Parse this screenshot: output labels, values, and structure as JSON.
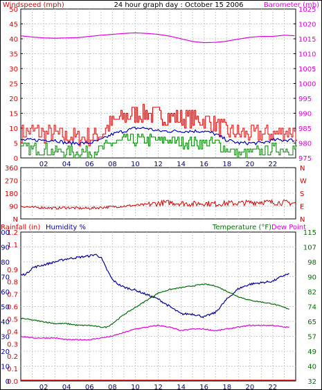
{
  "header": {
    "title": "24 hour graph day : October 15 2006",
    "left_label": "Windspeed (mph)",
    "right_label": "Barometer (mb)"
  },
  "colors": {
    "wind": "#e00000",
    "avg_wind": "#0000c0",
    "gust_low": "#008000",
    "barometer": "#e000e0",
    "direction": "#d00000",
    "rain": "#e00000",
    "humidity": "#0000a0",
    "temperature": "#007000",
    "dewpoint": "#e000e0",
    "grid": "#c8c8c8",
    "frame": "#000000"
  },
  "chart_data": [
    {
      "type": "line",
      "name": "wind-and-barometer",
      "title": "24 hour graph day : October 15 2006",
      "xticks": [
        "02",
        "04",
        "06",
        "08",
        "10",
        "12",
        "14",
        "16",
        "18",
        "20",
        "22"
      ],
      "xlim": [
        0,
        24
      ],
      "left_axis": {
        "label": "Windspeed (mph)",
        "ticks": [
          "0",
          "5",
          "10",
          "15",
          "20",
          "25",
          "30",
          "35",
          "40",
          "45",
          "50"
        ],
        "lim": [
          0,
          50
        ]
      },
      "right_axis": {
        "label": "Barometer (mb)",
        "ticks": [
          "975",
          "980",
          "985",
          "990",
          "995",
          "1000",
          "1005",
          "1010",
          "1015",
          "1020",
          "1025"
        ],
        "lim": [
          975,
          1025
        ]
      },
      "grid": true,
      "series": [
        {
          "name": "Windspeed (mph)",
          "axis": "left",
          "x": [
            0,
            1,
            2,
            3,
            4,
            5,
            6,
            7,
            8,
            9,
            10,
            11,
            12,
            13,
            14,
            15,
            16,
            17,
            18,
            19,
            20,
            21,
            22,
            23,
            24
          ],
          "y": [
            8,
            9,
            8,
            8,
            7,
            7,
            7,
            8,
            12,
            14,
            15,
            15,
            14,
            14,
            13,
            13,
            13,
            11,
            9,
            8,
            8,
            8,
            8,
            9,
            9
          ]
        },
        {
          "axis": "left",
          "x": [
            0,
            1,
            2,
            3,
            4,
            5,
            6,
            7,
            8,
            9,
            10,
            11,
            12,
            13,
            14,
            15,
            16,
            17,
            18,
            19,
            20,
            21,
            22,
            23,
            24
          ],
          "y": [
            6,
            6,
            6,
            6,
            5,
            5,
            5,
            6,
            8,
            9,
            10,
            10,
            9,
            9,
            9,
            9,
            9,
            8,
            6,
            5,
            5,
            5,
            6,
            6,
            6
          ]
        },
        {
          "axis": "left",
          "x": [
            0,
            1,
            2,
            3,
            4,
            5,
            6,
            7,
            8,
            9,
            10,
            11,
            12,
            13,
            14,
            15,
            16,
            17,
            18,
            19,
            20,
            21,
            22,
            23,
            24
          ],
          "y": [
            3,
            3,
            3,
            2,
            2,
            2,
            2,
            3,
            5,
            6,
            6,
            6,
            6,
            6,
            5,
            5,
            5,
            5,
            3,
            1,
            2,
            2,
            3,
            3,
            3
          ]
        },
        {
          "name": "Barometer (mb)",
          "axis": "right",
          "x": [
            0,
            1,
            2,
            3,
            4,
            5,
            6,
            7,
            8,
            9,
            10,
            11,
            12,
            13,
            14,
            15,
            16,
            17,
            18,
            19,
            20,
            21,
            22,
            23,
            24
          ],
          "y": [
            1016.0,
            1015.6,
            1015.3,
            1015.2,
            1015.3,
            1015.4,
            1015.8,
            1016.2,
            1016.5,
            1016.8,
            1017.0,
            1016.8,
            1016.5,
            1015.9,
            1015.0,
            1014.1,
            1013.7,
            1013.8,
            1014.2,
            1014.9,
            1015.5,
            1015.8,
            1015.8,
            1016.2,
            1016.0
          ]
        }
      ]
    },
    {
      "type": "line",
      "name": "wind-direction",
      "xlim": [
        0,
        24
      ],
      "left_axis": {
        "ticks": [
          "N",
          "270",
          "180",
          "90",
          "N"
        ],
        "lim": [
          0,
          360
        ]
      },
      "right_axis": {
        "ticks": [
          "N",
          "W",
          "S",
          "E",
          "N"
        ]
      },
      "left_ticks_top": "360",
      "grid": true,
      "series": [
        {
          "axis": "left",
          "x": [
            0,
            1,
            2,
            3,
            4,
            5,
            6,
            7,
            8,
            9,
            10,
            11,
            12,
            13,
            14,
            15,
            16,
            17,
            18,
            19,
            20,
            21,
            22,
            23,
            24
          ],
          "y": [
            90,
            80,
            80,
            75,
            80,
            75,
            75,
            80,
            85,
            90,
            95,
            100,
            110,
            115,
            110,
            105,
            110,
            105,
            110,
            110,
            115,
            120,
            115,
            115,
            110
          ]
        }
      ]
    },
    {
      "type": "line",
      "name": "rain-humidity-temperature",
      "xticks": [
        "02",
        "04",
        "06",
        "08",
        "10",
        "12",
        "14",
        "16",
        "18",
        "20",
        "22"
      ],
      "xlim": [
        0,
        24
      ],
      "rain_axis": {
        "label": "Rainfall (in)",
        "ticks": [
          "0.0",
          "0.1",
          "0.2",
          "0.3",
          "0.4",
          "0.5",
          "0.6",
          "0.7",
          "0.8",
          "0.9",
          "1.0",
          "1.1",
          "1.2"
        ],
        "lim": [
          0,
          1.2
        ]
      },
      "humidity_axis": {
        "label": "Humidity %",
        "ticks": [
          "0",
          "10",
          "20",
          "30",
          "40",
          "50",
          "60",
          "70",
          "80",
          "90",
          "100"
        ],
        "lim": [
          0,
          100
        ]
      },
      "temp_axis": {
        "label": "Temperature (°F)",
        "label2": "Dew Point",
        "ticks": [
          "32",
          "40",
          "49",
          "57",
          "65",
          "74",
          "82",
          "90",
          "98",
          "107",
          "115"
        ],
        "lim": [
          32,
          115
        ]
      },
      "grid": true,
      "series": [
        {
          "name": "Humidity %",
          "axis": "humidity",
          "x": [
            0,
            0.5,
            1,
            2,
            3,
            4,
            5,
            6,
            6.5,
            7,
            7.5,
            8,
            8.5,
            9,
            10,
            11,
            12,
            13,
            14,
            15,
            16,
            17,
            18,
            19,
            20,
            21,
            22,
            23,
            23.5
          ],
          "y": [
            71,
            72,
            76,
            78,
            80,
            82,
            83,
            84,
            85,
            83,
            75,
            68,
            65,
            63,
            61,
            58,
            55,
            50,
            45,
            45,
            43,
            46,
            55,
            62,
            65,
            66,
            67,
            71,
            72
          ]
        },
        {
          "name": "Temperature (°F)",
          "axis": "temp",
          "x": [
            0,
            1,
            2,
            3,
            4,
            5,
            6,
            7,
            7.5,
            8,
            9,
            10,
            11,
            12,
            13,
            14,
            15,
            16,
            17,
            18,
            19,
            20,
            21,
            22,
            23,
            23.5
          ],
          "y": [
            67,
            66,
            65,
            64,
            64,
            63,
            63,
            62,
            62,
            64,
            69,
            73,
            77,
            81,
            83,
            84,
            85,
            86,
            85,
            82,
            79,
            77,
            76,
            75,
            73,
            72
          ]
        },
        {
          "name": "Dew Point",
          "axis": "temp",
          "x": [
            0,
            1,
            2,
            3,
            4,
            5,
            6,
            7,
            8,
            9,
            10,
            11,
            12,
            13,
            14,
            15,
            16,
            17,
            18,
            19,
            20,
            21,
            22,
            23,
            23.5
          ],
          "y": [
            57,
            56,
            56,
            56,
            55,
            55,
            55,
            56,
            57,
            59,
            61,
            62,
            63,
            62,
            60,
            61,
            61,
            60,
            61,
            62,
            63,
            63,
            63,
            62,
            62
          ]
        },
        {
          "name": "Rainfall (in)",
          "axis": "rain",
          "x": [
            0,
            24
          ],
          "y": [
            0.0,
            0.0
          ]
        }
      ]
    }
  ]
}
